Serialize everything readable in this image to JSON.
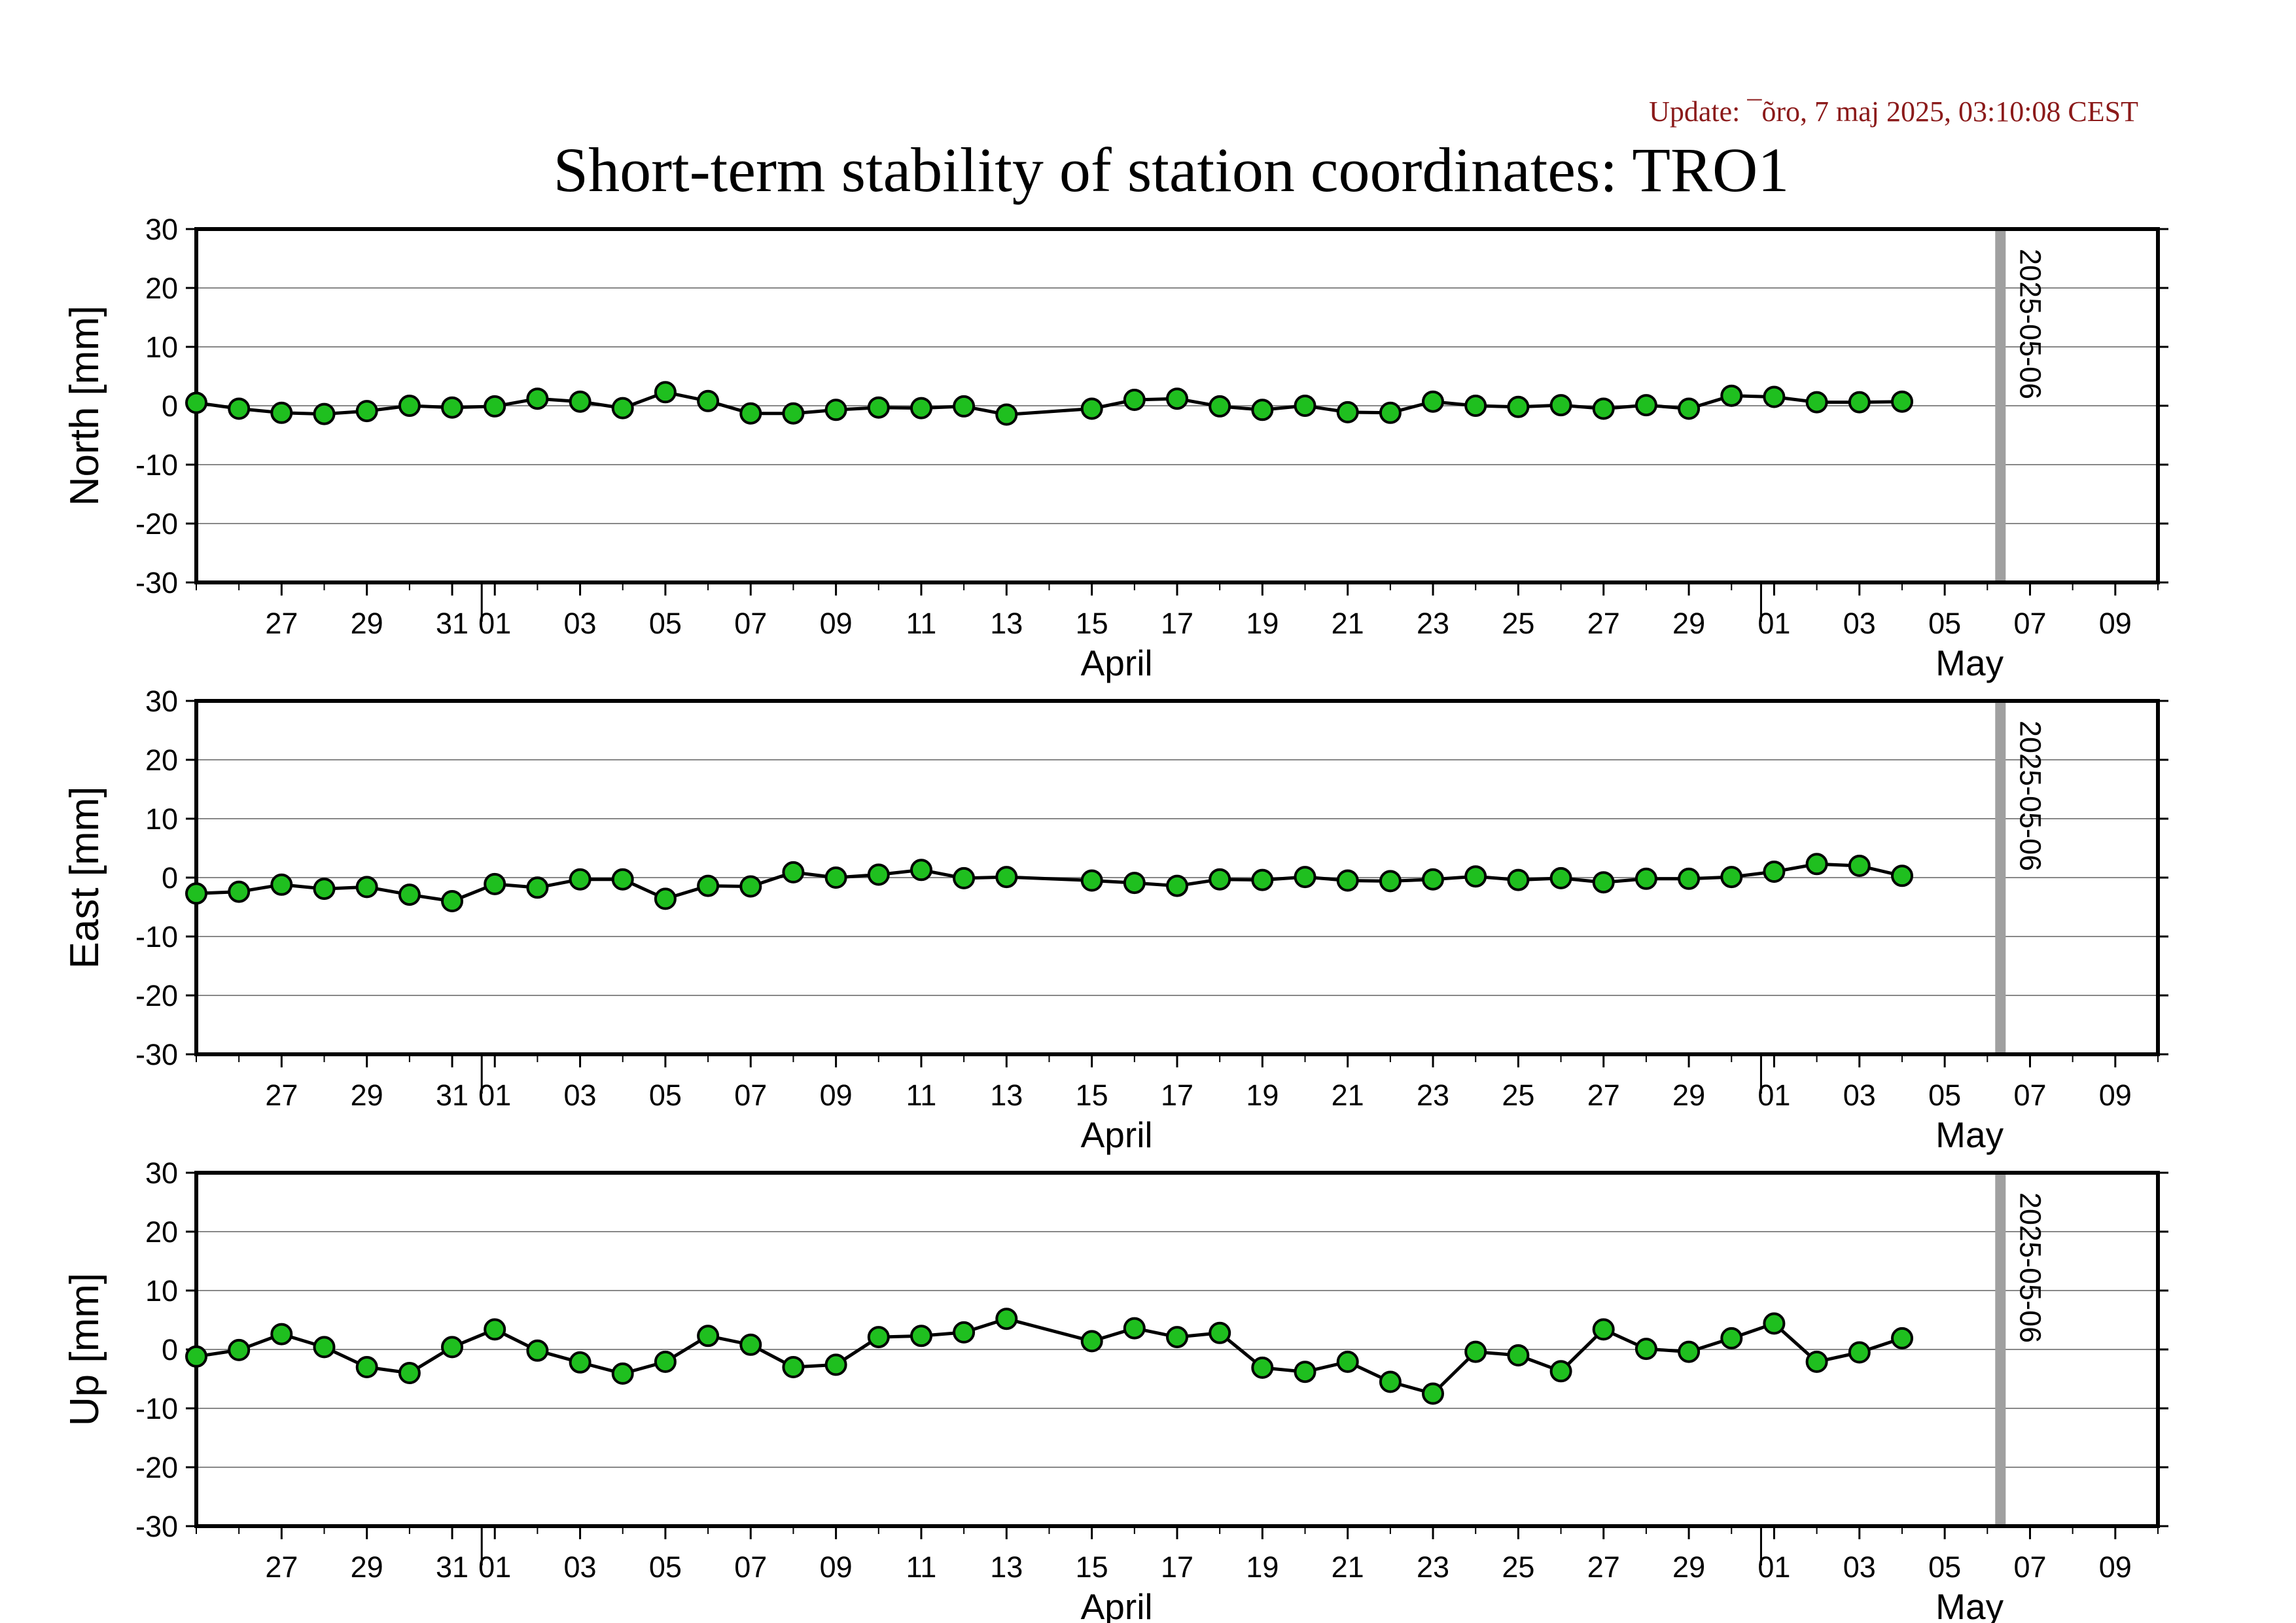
{
  "update_text": "Update: ¯õro, 7 maj 2025, 03:10:08 CEST",
  "title": "Short-term stability of station coordinates: TRO1",
  "colors": {
    "marker_fill": "#1fbf1f",
    "marker_edge": "#000000",
    "line": "#000000",
    "grid": "#888888",
    "today_line": "#a0a0a0",
    "update_text": "#8b1a1a"
  },
  "chart_data": [
    {
      "type": "line",
      "ylabel": "North [mm]",
      "ylim": [
        -30,
        30
      ],
      "yticks": [
        30,
        20,
        10,
        0,
        -10,
        -20,
        -30
      ],
      "x_axis": {
        "type": "date",
        "range": [
          "2025-03-25",
          "2025-05-10"
        ],
        "tick_labels": [
          {
            "date": "2025-03-27",
            "label": "27"
          },
          {
            "date": "2025-03-29",
            "label": "29"
          },
          {
            "date": "2025-03-31",
            "label": "31"
          },
          {
            "date": "2025-04-01",
            "label": "01"
          },
          {
            "date": "2025-04-03",
            "label": "03"
          },
          {
            "date": "2025-04-05",
            "label": "05"
          },
          {
            "date": "2025-04-07",
            "label": "07"
          },
          {
            "date": "2025-04-09",
            "label": "09"
          },
          {
            "date": "2025-04-11",
            "label": "11"
          },
          {
            "date": "2025-04-13",
            "label": "13"
          },
          {
            "date": "2025-04-15",
            "label": "15"
          },
          {
            "date": "2025-04-17",
            "label": "17"
          },
          {
            "date": "2025-04-19",
            "label": "19"
          },
          {
            "date": "2025-04-21",
            "label": "21"
          },
          {
            "date": "2025-04-23",
            "label": "23"
          },
          {
            "date": "2025-04-25",
            "label": "25"
          },
          {
            "date": "2025-04-27",
            "label": "27"
          },
          {
            "date": "2025-04-29",
            "label": "29"
          },
          {
            "date": "2025-05-01",
            "label": "01"
          },
          {
            "date": "2025-05-03",
            "label": "03"
          },
          {
            "date": "2025-05-05",
            "label": "05"
          },
          {
            "date": "2025-05-07",
            "label": "07"
          },
          {
            "date": "2025-05-09",
            "label": "09"
          }
        ],
        "month_labels": [
          {
            "date": "2025-04-15",
            "label": "April"
          },
          {
            "date": "2025-05-05",
            "label": "May"
          }
        ]
      },
      "marker_line": {
        "date": "2025-05-06",
        "label": "2025-05-06"
      },
      "grid": true,
      "points": [
        {
          "x": "2025-03-25",
          "y": 0.5
        },
        {
          "x": "2025-03-26",
          "y": -0.5
        },
        {
          "x": "2025-03-27",
          "y": -1.2
        },
        {
          "x": "2025-03-28",
          "y": -1.4
        },
        {
          "x": "2025-03-29",
          "y": -0.9
        },
        {
          "x": "2025-03-30",
          "y": 0.0
        },
        {
          "x": "2025-03-31",
          "y": -0.3
        },
        {
          "x": "2025-04-01",
          "y": -0.1
        },
        {
          "x": "2025-04-02",
          "y": 1.2
        },
        {
          "x": "2025-04-03",
          "y": 0.7
        },
        {
          "x": "2025-04-04",
          "y": -0.4
        },
        {
          "x": "2025-04-05",
          "y": 2.3
        },
        {
          "x": "2025-04-06",
          "y": 0.8
        },
        {
          "x": "2025-04-07",
          "y": -1.3
        },
        {
          "x": "2025-04-08",
          "y": -1.3
        },
        {
          "x": "2025-04-09",
          "y": -0.7
        },
        {
          "x": "2025-04-10",
          "y": -0.3
        },
        {
          "x": "2025-04-11",
          "y": -0.4
        },
        {
          "x": "2025-04-12",
          "y": -0.1
        },
        {
          "x": "2025-04-13",
          "y": -1.5
        },
        {
          "x": "2025-04-15",
          "y": -0.5
        },
        {
          "x": "2025-04-16",
          "y": 1.0
        },
        {
          "x": "2025-04-17",
          "y": 1.2
        },
        {
          "x": "2025-04-18",
          "y": -0.1
        },
        {
          "x": "2025-04-19",
          "y": -0.7
        },
        {
          "x": "2025-04-20",
          "y": 0.0
        },
        {
          "x": "2025-04-21",
          "y": -1.1
        },
        {
          "x": "2025-04-22",
          "y": -1.2
        },
        {
          "x": "2025-04-23",
          "y": 0.7
        },
        {
          "x": "2025-04-24",
          "y": 0.0
        },
        {
          "x": "2025-04-25",
          "y": -0.2
        },
        {
          "x": "2025-04-26",
          "y": 0.1
        },
        {
          "x": "2025-04-27",
          "y": -0.5
        },
        {
          "x": "2025-04-28",
          "y": 0.1
        },
        {
          "x": "2025-04-29",
          "y": -0.5
        },
        {
          "x": "2025-04-30",
          "y": 1.7
        },
        {
          "x": "2025-05-01",
          "y": 1.5
        },
        {
          "x": "2025-05-02",
          "y": 0.6
        },
        {
          "x": "2025-05-03",
          "y": 0.6
        },
        {
          "x": "2025-05-04",
          "y": 0.7
        }
      ]
    },
    {
      "type": "line",
      "ylabel": "East [mm]",
      "ylim": [
        -30,
        30
      ],
      "yticks": [
        30,
        20,
        10,
        0,
        -10,
        -20,
        -30
      ],
      "x_axis": {
        "type": "date",
        "range": [
          "2025-03-25",
          "2025-05-10"
        ],
        "tick_labels": [
          {
            "date": "2025-03-27",
            "label": "27"
          },
          {
            "date": "2025-03-29",
            "label": "29"
          },
          {
            "date": "2025-03-31",
            "label": "31"
          },
          {
            "date": "2025-04-01",
            "label": "01"
          },
          {
            "date": "2025-04-03",
            "label": "03"
          },
          {
            "date": "2025-04-05",
            "label": "05"
          },
          {
            "date": "2025-04-07",
            "label": "07"
          },
          {
            "date": "2025-04-09",
            "label": "09"
          },
          {
            "date": "2025-04-11",
            "label": "11"
          },
          {
            "date": "2025-04-13",
            "label": "13"
          },
          {
            "date": "2025-04-15",
            "label": "15"
          },
          {
            "date": "2025-04-17",
            "label": "17"
          },
          {
            "date": "2025-04-19",
            "label": "19"
          },
          {
            "date": "2025-04-21",
            "label": "21"
          },
          {
            "date": "2025-04-23",
            "label": "23"
          },
          {
            "date": "2025-04-25",
            "label": "25"
          },
          {
            "date": "2025-04-27",
            "label": "27"
          },
          {
            "date": "2025-04-29",
            "label": "29"
          },
          {
            "date": "2025-05-01",
            "label": "01"
          },
          {
            "date": "2025-05-03",
            "label": "03"
          },
          {
            "date": "2025-05-05",
            "label": "05"
          },
          {
            "date": "2025-05-07",
            "label": "07"
          },
          {
            "date": "2025-05-09",
            "label": "09"
          }
        ],
        "month_labels": [
          {
            "date": "2025-04-15",
            "label": "April"
          },
          {
            "date": "2025-05-05",
            "label": "May"
          }
        ]
      },
      "marker_line": {
        "date": "2025-05-06",
        "label": "2025-05-06"
      },
      "grid": true,
      "points": [
        {
          "x": "2025-03-25",
          "y": -2.7
        },
        {
          "x": "2025-03-26",
          "y": -2.4
        },
        {
          "x": "2025-03-27",
          "y": -1.2
        },
        {
          "x": "2025-03-28",
          "y": -1.9
        },
        {
          "x": "2025-03-29",
          "y": -1.6
        },
        {
          "x": "2025-03-30",
          "y": -2.9
        },
        {
          "x": "2025-03-31",
          "y": -4.0
        },
        {
          "x": "2025-04-01",
          "y": -1.1
        },
        {
          "x": "2025-04-02",
          "y": -1.7
        },
        {
          "x": "2025-04-03",
          "y": -0.3
        },
        {
          "x": "2025-04-04",
          "y": -0.3
        },
        {
          "x": "2025-04-05",
          "y": -3.6
        },
        {
          "x": "2025-04-06",
          "y": -1.4
        },
        {
          "x": "2025-04-07",
          "y": -1.5
        },
        {
          "x": "2025-04-08",
          "y": 0.9
        },
        {
          "x": "2025-04-09",
          "y": 0.0
        },
        {
          "x": "2025-04-10",
          "y": 0.5
        },
        {
          "x": "2025-04-11",
          "y": 1.3
        },
        {
          "x": "2025-04-12",
          "y": -0.1
        },
        {
          "x": "2025-04-13",
          "y": 0.1
        },
        {
          "x": "2025-04-15",
          "y": -0.5
        },
        {
          "x": "2025-04-16",
          "y": -0.9
        },
        {
          "x": "2025-04-17",
          "y": -1.4
        },
        {
          "x": "2025-04-18",
          "y": -0.3
        },
        {
          "x": "2025-04-19",
          "y": -0.4
        },
        {
          "x": "2025-04-20",
          "y": 0.1
        },
        {
          "x": "2025-04-21",
          "y": -0.5
        },
        {
          "x": "2025-04-22",
          "y": -0.6
        },
        {
          "x": "2025-04-23",
          "y": -0.3
        },
        {
          "x": "2025-04-24",
          "y": 0.2
        },
        {
          "x": "2025-04-25",
          "y": -0.4
        },
        {
          "x": "2025-04-26",
          "y": -0.1
        },
        {
          "x": "2025-04-27",
          "y": -0.8
        },
        {
          "x": "2025-04-28",
          "y": -0.2
        },
        {
          "x": "2025-04-29",
          "y": -0.2
        },
        {
          "x": "2025-04-30",
          "y": 0.1
        },
        {
          "x": "2025-05-01",
          "y": 1.0
        },
        {
          "x": "2025-05-02",
          "y": 2.3
        },
        {
          "x": "2025-05-03",
          "y": 2.0
        },
        {
          "x": "2025-05-04",
          "y": 0.3
        }
      ]
    },
    {
      "type": "line",
      "ylabel": "Up [mm]",
      "ylim": [
        -30,
        30
      ],
      "yticks": [
        30,
        20,
        10,
        0,
        -10,
        -20,
        -30
      ],
      "x_axis": {
        "type": "date",
        "range": [
          "2025-03-25",
          "2025-05-10"
        ],
        "tick_labels": [
          {
            "date": "2025-03-27",
            "label": "27"
          },
          {
            "date": "2025-03-29",
            "label": "29"
          },
          {
            "date": "2025-03-31",
            "label": "31"
          },
          {
            "date": "2025-04-01",
            "label": "01"
          },
          {
            "date": "2025-04-03",
            "label": "03"
          },
          {
            "date": "2025-04-05",
            "label": "05"
          },
          {
            "date": "2025-04-07",
            "label": "07"
          },
          {
            "date": "2025-04-09",
            "label": "09"
          },
          {
            "date": "2025-04-11",
            "label": "11"
          },
          {
            "date": "2025-04-13",
            "label": "13"
          },
          {
            "date": "2025-04-15",
            "label": "15"
          },
          {
            "date": "2025-04-17",
            "label": "17"
          },
          {
            "date": "2025-04-19",
            "label": "19"
          },
          {
            "date": "2025-04-21",
            "label": "21"
          },
          {
            "date": "2025-04-23",
            "label": "23"
          },
          {
            "date": "2025-04-25",
            "label": "25"
          },
          {
            "date": "2025-04-27",
            "label": "27"
          },
          {
            "date": "2025-04-29",
            "label": "29"
          },
          {
            "date": "2025-05-01",
            "label": "01"
          },
          {
            "date": "2025-05-03",
            "label": "03"
          },
          {
            "date": "2025-05-05",
            "label": "05"
          },
          {
            "date": "2025-05-07",
            "label": "07"
          },
          {
            "date": "2025-05-09",
            "label": "09"
          }
        ],
        "month_labels": [
          {
            "date": "2025-04-15",
            "label": "April"
          },
          {
            "date": "2025-05-05",
            "label": "May"
          }
        ]
      },
      "marker_line": {
        "date": "2025-05-06",
        "label": "2025-05-06"
      },
      "grid": true,
      "points": [
        {
          "x": "2025-03-25",
          "y": -1.2
        },
        {
          "x": "2025-03-26",
          "y": -0.1
        },
        {
          "x": "2025-03-27",
          "y": 2.6
        },
        {
          "x": "2025-03-28",
          "y": 0.4
        },
        {
          "x": "2025-03-29",
          "y": -3.0
        },
        {
          "x": "2025-03-30",
          "y": -4.0
        },
        {
          "x": "2025-03-31",
          "y": 0.4
        },
        {
          "x": "2025-04-01",
          "y": 3.4
        },
        {
          "x": "2025-04-02",
          "y": -0.2
        },
        {
          "x": "2025-04-03",
          "y": -2.2
        },
        {
          "x": "2025-04-04",
          "y": -4.1
        },
        {
          "x": "2025-04-05",
          "y": -2.1
        },
        {
          "x": "2025-04-06",
          "y": 2.3
        },
        {
          "x": "2025-04-07",
          "y": 0.8
        },
        {
          "x": "2025-04-08",
          "y": -3.0
        },
        {
          "x": "2025-04-09",
          "y": -2.6
        },
        {
          "x": "2025-04-10",
          "y": 2.1
        },
        {
          "x": "2025-04-11",
          "y": 2.3
        },
        {
          "x": "2025-04-12",
          "y": 2.9
        },
        {
          "x": "2025-04-13",
          "y": 5.2
        },
        {
          "x": "2025-04-15",
          "y": 1.4
        },
        {
          "x": "2025-04-16",
          "y": 3.6
        },
        {
          "x": "2025-04-17",
          "y": 2.1
        },
        {
          "x": "2025-04-18",
          "y": 2.8
        },
        {
          "x": "2025-04-19",
          "y": -3.1
        },
        {
          "x": "2025-04-20",
          "y": -3.8
        },
        {
          "x": "2025-04-21",
          "y": -2.1
        },
        {
          "x": "2025-04-22",
          "y": -5.5
        },
        {
          "x": "2025-04-23",
          "y": -7.5
        },
        {
          "x": "2025-04-24",
          "y": -0.4
        },
        {
          "x": "2025-04-25",
          "y": -1.0
        },
        {
          "x": "2025-04-26",
          "y": -3.7
        },
        {
          "x": "2025-04-27",
          "y": 3.4
        },
        {
          "x": "2025-04-28",
          "y": 0.1
        },
        {
          "x": "2025-04-29",
          "y": -0.4
        },
        {
          "x": "2025-04-30",
          "y": 1.9
        },
        {
          "x": "2025-05-01",
          "y": 4.4
        },
        {
          "x": "2025-05-02",
          "y": -2.1
        },
        {
          "x": "2025-05-03",
          "y": -0.5
        },
        {
          "x": "2025-05-04",
          "y": 1.9
        }
      ]
    }
  ]
}
